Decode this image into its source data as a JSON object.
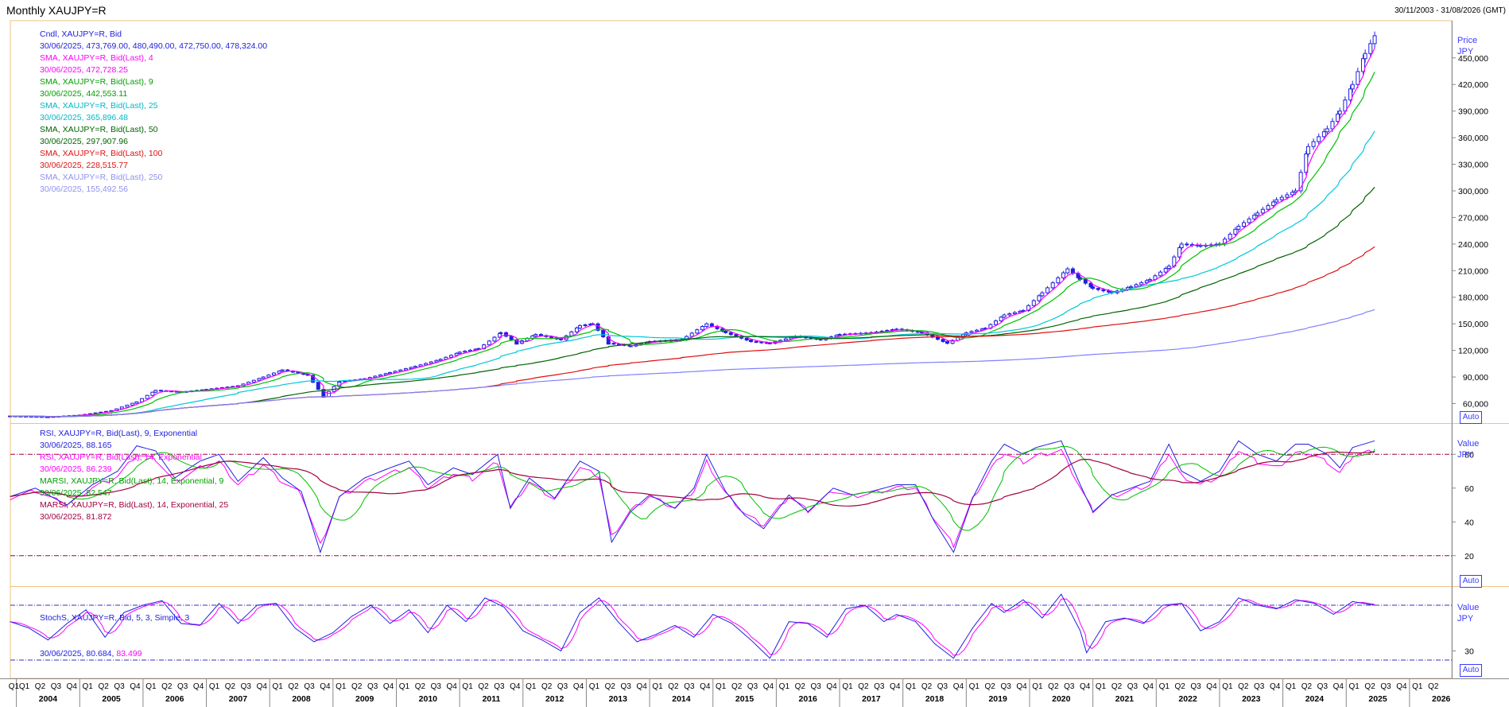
{
  "window": {
    "title": "Monthly XAUJPY=R",
    "date_range": "30/11/2003 - 31/08/2026 (GMT)",
    "auto_label": "Auto"
  },
  "colors": {
    "candle": "#2020e0",
    "sma4": "#ff00ff",
    "sma9": "#00c000",
    "sma25": "#00c8d8",
    "sma50": "#006400",
    "sma100": "#e01010",
    "sma250": "#8080ff",
    "rsi9": "#2020e0",
    "rsi14": "#ff00ff",
    "marsi9": "#00c000",
    "marsi25": "#a00040",
    "stoch_k": "#2020e0",
    "stoch_d": "#ff00ff",
    "grid_ref": "#a00040",
    "stoch_ref": "#3030c0"
  },
  "price_legend": [
    {
      "text": "Cndl, XAUJPY=R, Bid",
      "color": "#2020e0"
    },
    {
      "text": "30/06/2025, 473,769.00, 480,490.00, 472,750.00, 478,324.00",
      "color": "#2020e0"
    },
    {
      "text": "SMA, XAUJPY=R, Bid(Last), 4",
      "color": "#ff00ff"
    },
    {
      "text": "30/06/2025, 472,728.25",
      "color": "#ff00ff"
    },
    {
      "text": "SMA, XAUJPY=R, Bid(Last), 9",
      "color": "#00a000"
    },
    {
      "text": "30/06/2025, 442,553.11",
      "color": "#00a000"
    },
    {
      "text": "SMA, XAUJPY=R, Bid(Last), 25",
      "color": "#00b8c8"
    },
    {
      "text": "30/06/2025, 365,896.48",
      "color": "#00b8c8"
    },
    {
      "text": "SMA, XAUJPY=R, Bid(Last), 50",
      "color": "#006400"
    },
    {
      "text": "30/06/2025, 297,907.96",
      "color": "#006400"
    },
    {
      "text": "SMA, XAUJPY=R, Bid(Last), 100",
      "color": "#e01010"
    },
    {
      "text": "30/06/2025, 228,515.77",
      "color": "#e01010"
    },
    {
      "text": "SMA, XAUJPY=R, Bid(Last), 250",
      "color": "#9090f0"
    },
    {
      "text": "30/06/2025, 155,492.56",
      "color": "#9090f0"
    }
  ],
  "rsi_legend": [
    {
      "text": "RSI, XAUJPY=R, Bid(Last), 9, Exponential",
      "color": "#2020e0"
    },
    {
      "text": "30/06/2025, 88.165",
      "color": "#2020e0"
    },
    {
      "text": "RSI, XAUJPY=R, Bid(Last), 14, Exponential",
      "color": "#ff00ff"
    },
    {
      "text": "30/06/2025, 86.239",
      "color": "#ff00ff"
    },
    {
      "text": "MARSI, XAUJPY=R, Bid(Last), 14, Exponential, 9",
      "color": "#00a000"
    },
    {
      "text": "30/06/2025, 82.547",
      "color": "#00a000"
    },
    {
      "text": "MARSI, XAUJPY=R, Bid(Last), 14, Exponential, 25",
      "color": "#a00040"
    },
    {
      "text": "30/06/2025, 81.872",
      "color": "#a00040"
    }
  ],
  "stoch_legend": {
    "line1": "StochS, XAUJPY=R, Bid, 5, 3, Simple, 3",
    "line2a": "30/06/2025, 80.684, ",
    "line2b": "83.499"
  },
  "chart_data": {
    "type": "line",
    "price_panel": {
      "unit_labels": [
        "Price",
        "JPY"
      ],
      "y_ticks": [
        60000,
        90000,
        120000,
        150000,
        180000,
        210000,
        240000,
        270000,
        300000,
        330000,
        360000,
        390000,
        420000,
        450000
      ],
      "y_tick_labels": [
        "60,000",
        "90,000",
        "120,000",
        "150,000",
        "180,000",
        "210,000",
        "240,000",
        "270,000",
        "300,000",
        "330,000",
        "360,000",
        "390,000",
        "420,000",
        "450,000"
      ],
      "ylim": [
        38000,
        492000
      ],
      "series_close": [
        [
          2003.9,
          46000
        ],
        [
          2004.5,
          45000
        ],
        [
          2005.0,
          47000
        ],
        [
          2005.5,
          52000
        ],
        [
          2005.9,
          62000
        ],
        [
          2006.2,
          75000
        ],
        [
          2006.6,
          73000
        ],
        [
          2007.0,
          76000
        ],
        [
          2007.5,
          80000
        ],
        [
          2007.9,
          90000
        ],
        [
          2008.2,
          98000
        ],
        [
          2008.6,
          92000
        ],
        [
          2008.85,
          68000
        ],
        [
          2009.1,
          85000
        ],
        [
          2009.5,
          88000
        ],
        [
          2009.9,
          95000
        ],
        [
          2010.3,
          102000
        ],
        [
          2010.7,
          110000
        ],
        [
          2011.0,
          118000
        ],
        [
          2011.3,
          122000
        ],
        [
          2011.65,
          140000
        ],
        [
          2011.9,
          128000
        ],
        [
          2012.2,
          138000
        ],
        [
          2012.6,
          132000
        ],
        [
          2012.9,
          148000
        ],
        [
          2013.1,
          150000
        ],
        [
          2013.35,
          128000
        ],
        [
          2013.7,
          125000
        ],
        [
          2014.0,
          130000
        ],
        [
          2014.5,
          132000
        ],
        [
          2014.9,
          150000
        ],
        [
          2015.2,
          140000
        ],
        [
          2015.6,
          130000
        ],
        [
          2015.9,
          128000
        ],
        [
          2016.3,
          136000
        ],
        [
          2016.7,
          132000
        ],
        [
          2017.0,
          138000
        ],
        [
          2017.5,
          140000
        ],
        [
          2017.9,
          144000
        ],
        [
          2018.3,
          140000
        ],
        [
          2018.7,
          128000
        ],
        [
          2019.0,
          140000
        ],
        [
          2019.3,
          145000
        ],
        [
          2019.6,
          160000
        ],
        [
          2019.9,
          165000
        ],
        [
          2020.2,
          185000
        ],
        [
          2020.6,
          212000
        ],
        [
          2020.8,
          200000
        ],
        [
          2021.0,
          190000
        ],
        [
          2021.3,
          185000
        ],
        [
          2021.6,
          192000
        ],
        [
          2021.9,
          200000
        ],
        [
          2022.2,
          215000
        ],
        [
          2022.4,
          240000
        ],
        [
          2022.7,
          238000
        ],
        [
          2023.0,
          240000
        ],
        [
          2023.3,
          260000
        ],
        [
          2023.6,
          275000
        ],
        [
          2023.9,
          290000
        ],
        [
          2024.2,
          300000
        ],
        [
          2024.4,
          350000
        ],
        [
          2024.7,
          370000
        ],
        [
          2024.9,
          390000
        ],
        [
          2025.1,
          420000
        ],
        [
          2025.3,
          455000
        ],
        [
          2025.45,
          475000
        ]
      ],
      "sma_last_values": {
        "4": 472728.25,
        "9": 442553.11,
        "25": 365896.48,
        "50": 297907.96,
        "100": 228515.77,
        "250": 155492.56
      }
    },
    "rsi_panel": {
      "unit_labels": [
        "Value",
        "JPY"
      ],
      "y_ticks": [
        20,
        40,
        60,
        80
      ],
      "ref_lines": [
        80,
        20
      ],
      "ylim": [
        2,
        98
      ],
      "rsi9": [
        [
          2003.9,
          55
        ],
        [
          2004.3,
          60
        ],
        [
          2004.8,
          50
        ],
        [
          2005.2,
          62
        ],
        [
          2005.6,
          70
        ],
        [
          2005.9,
          85
        ],
        [
          2006.2,
          82
        ],
        [
          2006.5,
          66
        ],
        [
          2006.9,
          76
        ],
        [
          2007.2,
          80
        ],
        [
          2007.5,
          64
        ],
        [
          2007.9,
          78
        ],
        [
          2008.2,
          66
        ],
        [
          2008.5,
          58
        ],
        [
          2008.8,
          22
        ],
        [
          2009.1,
          55
        ],
        [
          2009.5,
          66
        ],
        [
          2009.9,
          72
        ],
        [
          2010.2,
          76
        ],
        [
          2010.5,
          62
        ],
        [
          2010.9,
          72
        ],
        [
          2011.2,
          68
        ],
        [
          2011.6,
          80
        ],
        [
          2011.8,
          48
        ],
        [
          2012.1,
          66
        ],
        [
          2012.5,
          54
        ],
        [
          2012.9,
          76
        ],
        [
          2013.2,
          70
        ],
        [
          2013.4,
          28
        ],
        [
          2013.7,
          46
        ],
        [
          2014.0,
          56
        ],
        [
          2014.4,
          48
        ],
        [
          2014.7,
          60
        ],
        [
          2014.9,
          80
        ],
        [
          2015.2,
          58
        ],
        [
          2015.5,
          44
        ],
        [
          2015.8,
          36
        ],
        [
          2016.2,
          56
        ],
        [
          2016.5,
          46
        ],
        [
          2016.9,
          60
        ],
        [
          2017.2,
          56
        ],
        [
          2017.5,
          58
        ],
        [
          2017.9,
          62
        ],
        [
          2018.2,
          62
        ],
        [
          2018.5,
          40
        ],
        [
          2018.8,
          22
        ],
        [
          2019.1,
          54
        ],
        [
          2019.4,
          76
        ],
        [
          2019.6,
          86
        ],
        [
          2019.9,
          80
        ],
        [
          2020.1,
          84
        ],
        [
          2020.5,
          88
        ],
        [
          2020.8,
          62
        ],
        [
          2021.0,
          46
        ],
        [
          2021.3,
          56
        ],
        [
          2021.6,
          60
        ],
        [
          2021.9,
          64
        ],
        [
          2022.2,
          86
        ],
        [
          2022.4,
          70
        ],
        [
          2022.7,
          64
        ],
        [
          2023.0,
          70
        ],
        [
          2023.3,
          88
        ],
        [
          2023.6,
          80
        ],
        [
          2023.9,
          76
        ],
        [
          2024.2,
          86
        ],
        [
          2024.4,
          86
        ],
        [
          2024.7,
          80
        ],
        [
          2024.9,
          72
        ],
        [
          2025.1,
          84
        ],
        [
          2025.45,
          88
        ]
      ],
      "last_values": {
        "rsi9": 88.165,
        "rsi14": 86.239,
        "marsi9": 82.547,
        "marsi25": 81.872
      }
    },
    "stoch_panel": {
      "unit_labels": [
        "Value",
        "JPY"
      ],
      "y_ticks": [
        30
      ],
      "ref_lines": [
        80,
        20
      ],
      "ylim": [
        0,
        100
      ],
      "k": [
        [
          2003.9,
          62
        ],
        [
          2004.2,
          55
        ],
        [
          2004.5,
          42
        ],
        [
          2004.8,
          60
        ],
        [
          2005.1,
          75
        ],
        [
          2005.4,
          45
        ],
        [
          2005.7,
          72
        ],
        [
          2006.0,
          80
        ],
        [
          2006.3,
          85
        ],
        [
          2006.6,
          60
        ],
        [
          2006.9,
          58
        ],
        [
          2007.2,
          82
        ],
        [
          2007.5,
          60
        ],
        [
          2007.8,
          80
        ],
        [
          2008.1,
          82
        ],
        [
          2008.4,
          55
        ],
        [
          2008.7,
          40
        ],
        [
          2009.0,
          50
        ],
        [
          2009.3,
          68
        ],
        [
          2009.6,
          80
        ],
        [
          2009.9,
          60
        ],
        [
          2010.2,
          75
        ],
        [
          2010.5,
          50
        ],
        [
          2010.8,
          80
        ],
        [
          2011.1,
          62
        ],
        [
          2011.4,
          88
        ],
        [
          2011.7,
          78
        ],
        [
          2012.0,
          52
        ],
        [
          2012.3,
          42
        ],
        [
          2012.6,
          30
        ],
        [
          2012.9,
          72
        ],
        [
          2013.2,
          88
        ],
        [
          2013.5,
          62
        ],
        [
          2013.8,
          40
        ],
        [
          2014.1,
          48
        ],
        [
          2014.4,
          58
        ],
        [
          2014.7,
          45
        ],
        [
          2015.0,
          70
        ],
        [
          2015.3,
          60
        ],
        [
          2015.6,
          42
        ],
        [
          2015.9,
          22
        ],
        [
          2016.2,
          62
        ],
        [
          2016.5,
          60
        ],
        [
          2016.8,
          45
        ],
        [
          2017.1,
          76
        ],
        [
          2017.4,
          80
        ],
        [
          2017.7,
          62
        ],
        [
          2017.9,
          70
        ],
        [
          2018.2,
          62
        ],
        [
          2018.5,
          38
        ],
        [
          2018.8,
          22
        ],
        [
          2019.1,
          55
        ],
        [
          2019.4,
          82
        ],
        [
          2019.6,
          72
        ],
        [
          2019.9,
          86
        ],
        [
          2020.2,
          66
        ],
        [
          2020.5,
          92
        ],
        [
          2020.8,
          52
        ],
        [
          2020.9,
          28
        ],
        [
          2021.2,
          62
        ],
        [
          2021.5,
          66
        ],
        [
          2021.8,
          60
        ],
        [
          2022.1,
          80
        ],
        [
          2022.4,
          82
        ],
        [
          2022.7,
          52
        ],
        [
          2023.0,
          62
        ],
        [
          2023.3,
          88
        ],
        [
          2023.6,
          80
        ],
        [
          2023.9,
          76
        ],
        [
          2024.2,
          86
        ],
        [
          2024.5,
          82
        ],
        [
          2024.8,
          70
        ],
        [
          2025.1,
          84
        ],
        [
          2025.45,
          80
        ]
      ],
      "last_values": {
        "k": 80.684,
        "d": 83.499
      }
    },
    "x_axis": {
      "quarter_labels": [
        "Q1",
        "Q2",
        "Q3",
        "Q4"
      ],
      "years": [
        "2004",
        "2005",
        "2006",
        "2007",
        "2008",
        "2009",
        "2010",
        "2011",
        "2012",
        "2013",
        "2014",
        "2015",
        "2016",
        "2017",
        "2018",
        "2019",
        "2020",
        "2021",
        "2022",
        "2023",
        "2024",
        "2025",
        "2026"
      ],
      "first_label": "Q1",
      "first_quarters": [
        "Q1",
        "Q2",
        "Q3",
        "Q4"
      ]
    }
  }
}
